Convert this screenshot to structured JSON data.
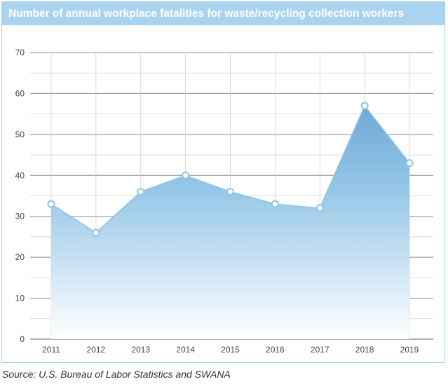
{
  "chart_data": {
    "type": "area",
    "title": "Number of annual workplace fatalities for waste/recycling collection workers",
    "xlabel": "",
    "ylabel": "",
    "x": [
      "2011",
      "2012",
      "2013",
      "2014",
      "2015",
      "2016",
      "2017",
      "2018",
      "2019"
    ],
    "values": [
      33,
      26,
      36,
      40,
      36,
      33,
      32,
      57,
      43
    ],
    "ylim": [
      0,
      70
    ],
    "yticks": [
      "0",
      "10",
      "20",
      "30",
      "40",
      "50",
      "60",
      "70"
    ],
    "grid": true,
    "legend": "none",
    "colors": {
      "fill_top": "#8ec3e6",
      "fill_bottom": "#ffffff",
      "line": "#8ec3e6",
      "marker_stroke": "#8ec3e6",
      "grid": "#999999",
      "title_bar": "#a9d3ef"
    }
  },
  "source": "Source: U.S. Bureau of Labor Statistics and SWANA"
}
